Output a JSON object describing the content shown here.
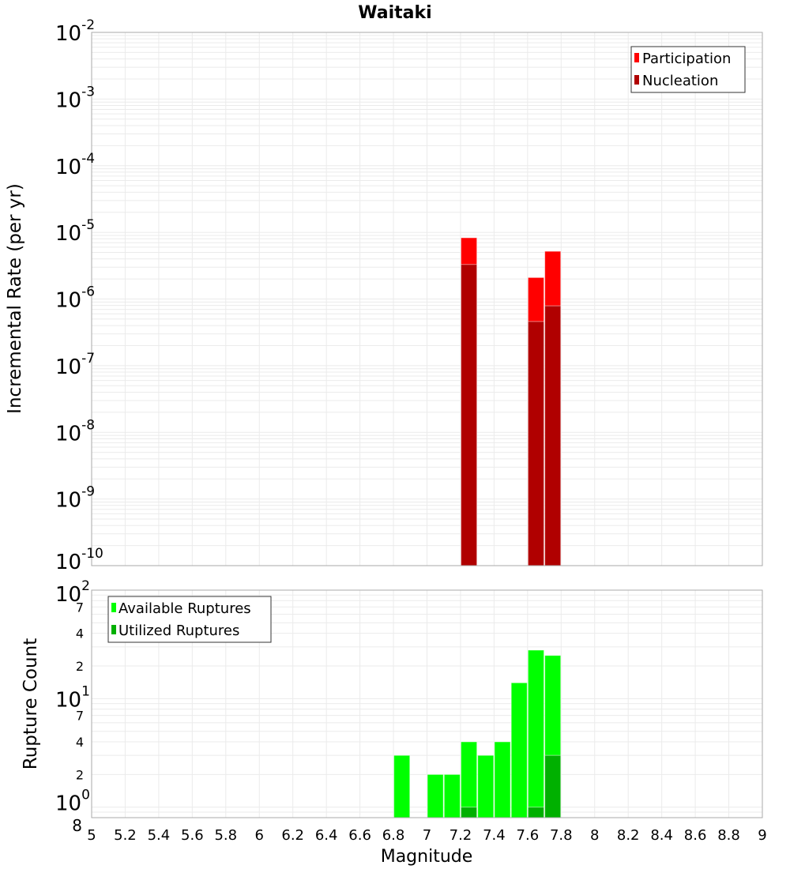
{
  "chart_data": [
    {
      "type": "bar",
      "title": "Waitaki",
      "ylabel": "Incremental Rate (per yr)",
      "xlabel": "",
      "yscale": "log",
      "ylim": [
        1e-10,
        0.01
      ],
      "xlim": [
        5,
        9
      ],
      "grid": true,
      "legend_position": "top-right",
      "y_tick_exponents": [
        -10,
        -9,
        -8,
        -7,
        -6,
        -5,
        -4,
        -3,
        -2
      ],
      "bar_width": 0.095,
      "series": [
        {
          "name": "Participation",
          "color": "#ff0000",
          "x": [
            7.25,
            7.65,
            7.75
          ],
          "values": [
            8.3e-06,
            2.1e-06,
            5.2e-06
          ]
        },
        {
          "name": "Nucleation",
          "color": "#b00000",
          "x": [
            7.25,
            7.65,
            7.75
          ],
          "values": [
            3.3e-06,
            4.6e-07,
            7.9e-07
          ]
        }
      ]
    },
    {
      "type": "bar",
      "title": "",
      "ylabel": "Rupture Count",
      "xlabel": "Magnitude",
      "yscale": "log",
      "ylim": [
        0.8,
        100
      ],
      "xlim": [
        5,
        9
      ],
      "grid": true,
      "legend_position": "top-left",
      "y_tick_exponents": [
        0,
        1,
        2
      ],
      "y_minor_labels": [
        "2",
        "4",
        "7"
      ],
      "y_bottom_label": "8",
      "x_ticks": [
        "5",
        "5.2",
        "5.4",
        "5.6",
        "5.8",
        "6",
        "6.2",
        "6.4",
        "6.6",
        "6.8",
        "7",
        "7.2",
        "7.4",
        "7.6",
        "7.8",
        "8",
        "8.2",
        "8.4",
        "8.6",
        "8.8",
        "9"
      ],
      "bar_width": 0.095,
      "series": [
        {
          "name": "Available Ruptures",
          "color": "#00ff00",
          "x": [
            6.85,
            7.05,
            7.15,
            7.25,
            7.35,
            7.45,
            7.55,
            7.65,
            7.75
          ],
          "values": [
            3,
            2,
            2,
            4,
            3,
            4,
            14,
            28,
            25
          ]
        },
        {
          "name": "Utilized Ruptures",
          "color": "#00b000",
          "x": [
            7.25,
            7.65,
            7.75
          ],
          "values": [
            1,
            1,
            3
          ]
        }
      ]
    }
  ]
}
